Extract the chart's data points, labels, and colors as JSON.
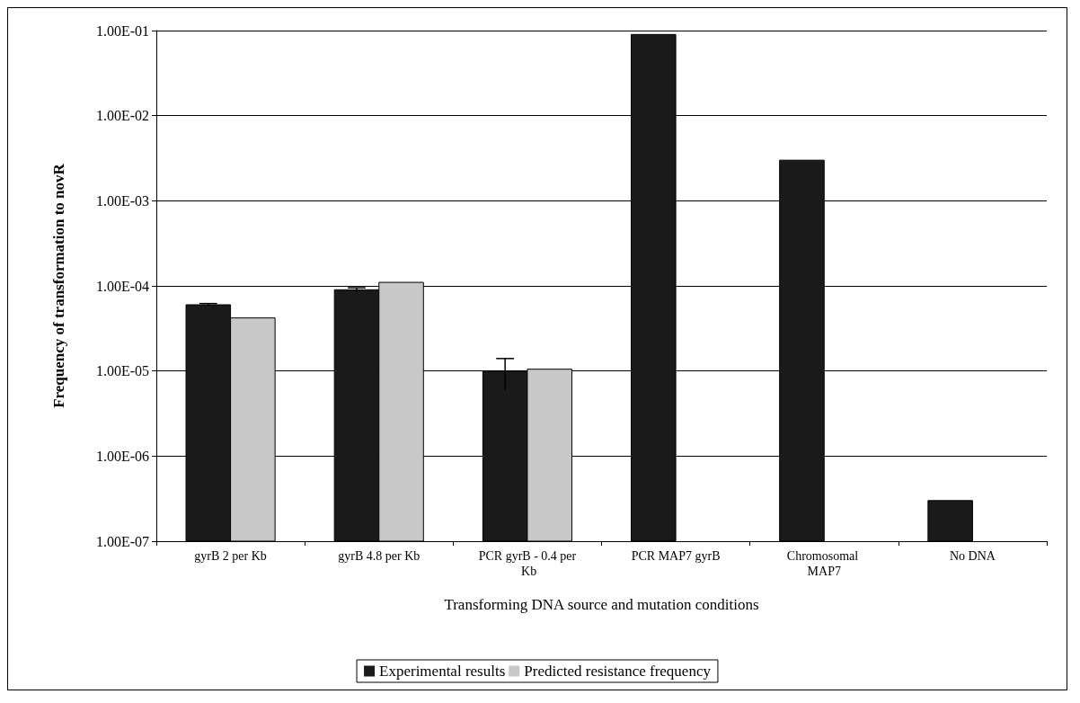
{
  "chart_data": {
    "type": "bar",
    "xlabel": "Transforming DNA source and mutation conditions",
    "ylabel": "Frequency of transformation to novR",
    "categories": [
      "gyrB 2 per Kb",
      "gyrB 4.8 per Kb",
      "PCR gyrB - 0.4 per Kb",
      "PCR MAP7 gyrB",
      "Chromosomal MAP7",
      "No DNA"
    ],
    "series": [
      {
        "name": "Experimental results",
        "color": "#1a1a1a",
        "values": [
          6e-05,
          9e-05,
          1e-05,
          0.09,
          0.003,
          3e-07
        ],
        "errors": [
          2e-06,
          5e-06,
          4e-06,
          null,
          null,
          null
        ]
      },
      {
        "name": "Predicted resistance frequency",
        "color": "#c8c8c8",
        "values": [
          4.2e-05,
          0.00011,
          1.05e-05,
          null,
          null,
          null
        ]
      }
    ],
    "log": true,
    "ylim": [
      1e-07,
      0.1
    ],
    "yticks": [
      {
        "value": 1e-07,
        "label": "1.00E-07"
      },
      {
        "value": 1e-06,
        "label": "1.00E-06"
      },
      {
        "value": 1e-05,
        "label": "1.00E-05"
      },
      {
        "value": 0.0001,
        "label": "1.00E-04"
      },
      {
        "value": 0.001,
        "label": "1.00E-03"
      },
      {
        "value": 0.01,
        "label": "1.00E-02"
      },
      {
        "value": 0.1,
        "label": "1.00E-01"
      }
    ],
    "grid": "y",
    "legend": "bottom"
  }
}
